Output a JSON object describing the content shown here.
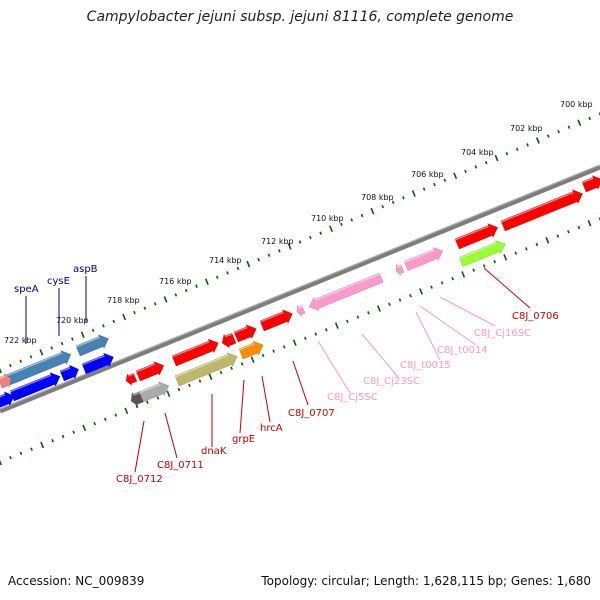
{
  "title": "Campylobacter jejuni subsp. jejuni 81116, complete genome",
  "footer": {
    "accession": "Accession: NC_009839",
    "info": "Topology: circular; Length: 1,628,115 bp; Genes: 1,680"
  },
  "colors": {
    "red_gene": "#ff0000",
    "pink_gene": "#ff99cc",
    "blue_gene": "#0000ff",
    "steelblue_gene": "#4682b4",
    "olive_gene": "#bdb76b",
    "orange_gene": "#ff8c00",
    "green_gene": "#99ff33",
    "gray_gene": "#aaaaaa",
    "backbone": "#808080",
    "tick": "#006400"
  },
  "kbp_labels": [
    "700 kbp",
    "702 kbp",
    "704 kbp",
    "706 kbp",
    "708 kbp",
    "710 kbp",
    "712 kbp",
    "714 kbp",
    "716 kbp",
    "718 kbp",
    "720 kbp",
    "722 kbp"
  ],
  "gene_labels_top": [
    {
      "text": "speA",
      "color": "#00008b"
    },
    {
      "text": "cysE",
      "color": "#00008b"
    },
    {
      "text": "aspB",
      "color": "#00008b"
    }
  ],
  "gene_labels_bottom": [
    {
      "text": "C8J_0706",
      "color": "#cc0000"
    },
    {
      "text": "C8J_Cj16SC",
      "color": "#ff99cc"
    },
    {
      "text": "C8J_t0014",
      "color": "#ff99cc"
    },
    {
      "text": "C8J_t0015",
      "color": "#ff99cc"
    },
    {
      "text": "C8J_Cj23SC",
      "color": "#ff99cc"
    },
    {
      "text": "C8J_Cj5SC",
      "color": "#ff99cc"
    },
    {
      "text": "C8J_0707",
      "color": "#cc0000"
    },
    {
      "text": "hrcA",
      "color": "#cc0000"
    },
    {
      "text": "grpE",
      "color": "#cc0000"
    },
    {
      "text": "dnaK",
      "color": "#cc0000"
    },
    {
      "text": "C8J_0711",
      "color": "#cc0000"
    },
    {
      "text": "C8J_0712",
      "color": "#cc0000"
    }
  ]
}
